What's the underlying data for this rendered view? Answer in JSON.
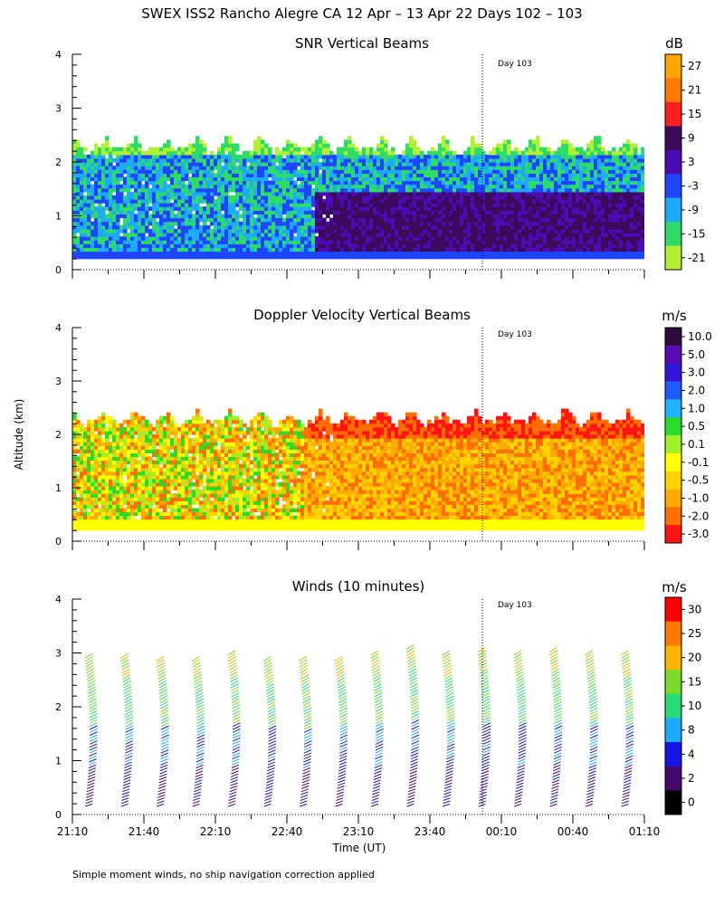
{
  "title": "SWEX ISS2 Rancho Alegre CA  12 Apr – 13 Apr 22 Days 102 – 103",
  "ylabel": "Altitude (km)",
  "xlabel": "Time (UT)",
  "footnote": "Simple moment winds, no ship navigation correction applied",
  "day_marker": "Day 103",
  "time_ticks": [
    "21:10",
    "21:40",
    "22:10",
    "22:40",
    "23:10",
    "23:40",
    "00:10",
    "00:40",
    "01:10"
  ],
  "altitude_ticks": [
    "0",
    "1",
    "2",
    "3",
    "4"
  ],
  "chart_data": [
    {
      "type": "heatmap",
      "title": "SNR Vertical Beams",
      "unit": "dB",
      "ylim": [
        0,
        4
      ],
      "xlim": [
        "21:10",
        "01:10"
      ],
      "echo_top_km": 2.5,
      "echo_base_km": 0.15,
      "colorbar_labels": [
        "27",
        "21",
        "15",
        "9",
        "3",
        "-3",
        "-9",
        "-15",
        "-21"
      ],
      "colorbar_colors": [
        "#ffa500",
        "#ff7800",
        "#ff1e1e",
        "#3c0a5a",
        "#4b0ab4",
        "#1e46ff",
        "#1eaaff",
        "#2ddc64",
        "#b4f032"
      ]
    },
    {
      "type": "heatmap",
      "title": "Doppler Velocity Vertical Beams",
      "unit": "m/s",
      "ylim": [
        0,
        4
      ],
      "xlim": [
        "21:10",
        "01:10"
      ],
      "echo_top_km": 2.5,
      "echo_base_km": 0.15,
      "colorbar_labels": [
        "10.0",
        "5.0",
        "3.0",
        "2.0",
        "1.0",
        "0.5",
        "0.1",
        "-0.1",
        "-0.5",
        "-1.0",
        "-2.0",
        "-3.0"
      ],
      "colorbar_colors": [
        "#2d0a3c",
        "#5a0ab4",
        "#3214dc",
        "#1e5aff",
        "#1eb4ff",
        "#28dc28",
        "#a0f028",
        "#ffff00",
        "#ffd200",
        "#ffaa00",
        "#ff6e00",
        "#ff1414"
      ]
    },
    {
      "type": "scatter",
      "title": "Winds (10 minutes)",
      "unit": "m/s",
      "ylim": [
        0,
        4
      ],
      "xlim": [
        "21:10",
        "01:10"
      ],
      "colorbar_labels": [
        "30",
        "25",
        "20",
        "15",
        "10",
        "8",
        "4",
        "2",
        "0"
      ],
      "colorbar_colors": [
        "#ff0000",
        "#ff7800",
        "#ffb400",
        "#78dc28",
        "#28dc78",
        "#1eaaff",
        "#1414e6",
        "#46086e",
        "#000000"
      ],
      "profile_times": [
        "21:15",
        "21:30",
        "21:45",
        "22:00",
        "22:15",
        "22:30",
        "22:45",
        "23:00",
        "23:15",
        "23:30",
        "23:45",
        "00:00",
        "00:15",
        "00:30",
        "00:45",
        "01:00"
      ],
      "profile_top_km": [
        2.95,
        2.95,
        2.9,
        2.9,
        3.0,
        2.9,
        2.85,
        2.9,
        3.0,
        3.1,
        3.0,
        3.05,
        3.0,
        3.05,
        3.0,
        3.0
      ]
    }
  ]
}
